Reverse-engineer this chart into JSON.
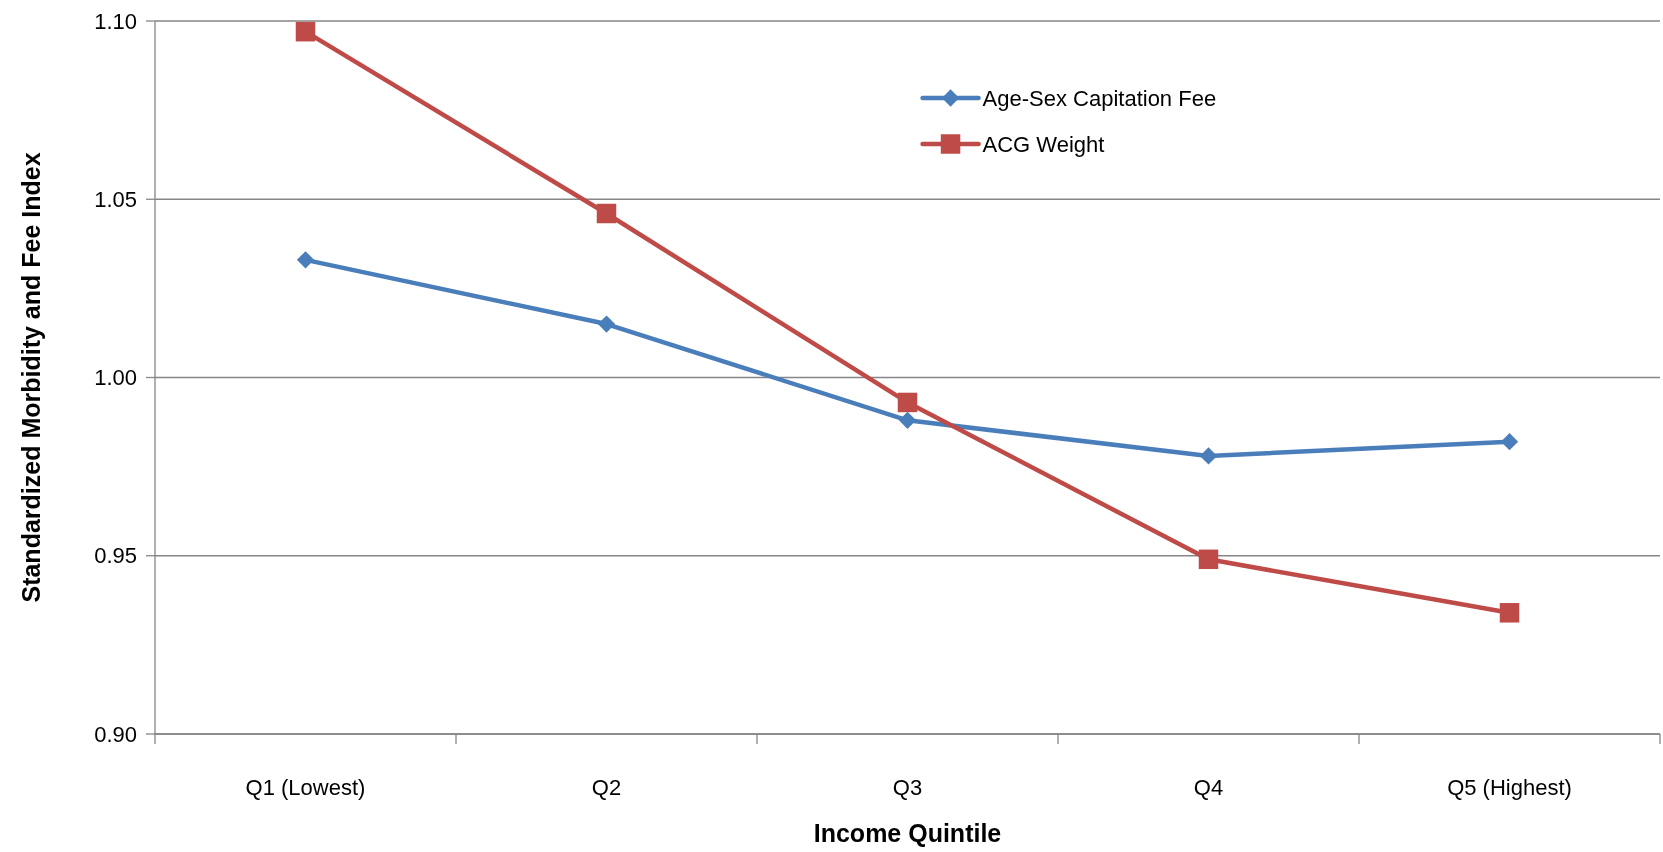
{
  "chart_data": {
    "type": "line",
    "xlabel": "Income Quintile",
    "ylabel": "Standardized Morbidity and Fee Index",
    "categories": [
      "Q1 (Lowest)",
      "Q2",
      "Q3",
      "Q4",
      "Q5 (Highest)"
    ],
    "series": [
      {
        "name": "Age-Sex Capitation Fee",
        "color": "#4a7ebb",
        "marker": "diamond",
        "values": [
          1.033,
          1.015,
          0.988,
          0.978,
          0.982
        ]
      },
      {
        "name": "ACG Weight",
        "color": "#be4b48",
        "marker": "square",
        "values": [
          1.097,
          1.046,
          0.993,
          0.949,
          0.934
        ]
      }
    ],
    "ylim": [
      0.9,
      1.1
    ],
    "yticks": [
      {
        "value": 0.9,
        "label": "0.90"
      },
      0.95,
      {
        "value": 1.0,
        "label": "1.00"
      },
      1.05,
      {
        "value": 1.1,
        "label": "1.10"
      }
    ],
    "grid": "y",
    "legend": "top right"
  }
}
